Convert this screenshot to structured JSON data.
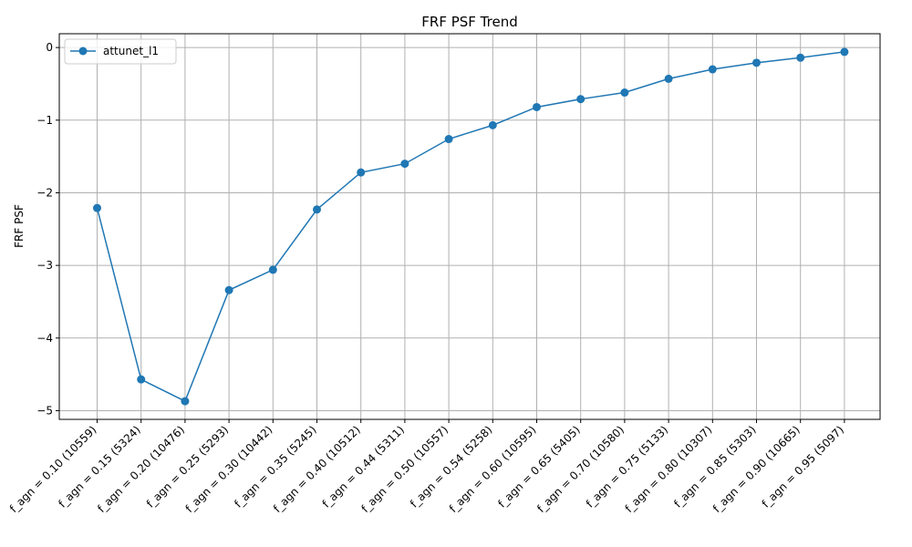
{
  "chart_data": {
    "type": "line",
    "title": "FRF PSF Trend",
    "xlabel": "",
    "ylabel": "FRF PSF",
    "categories": [
      "f_agn = 0.10 (10559)",
      "f_agn = 0.15 (5324)",
      "f_agn = 0.20 (10476)",
      "f_agn = 0.25 (5293)",
      "f_agn = 0.30 (10442)",
      "f_agn = 0.35 (5245)",
      "f_agn = 0.40 (10512)",
      "f_agn = 0.44 (5311)",
      "f_agn = 0.50 (10557)",
      "f_agn = 0.54 (5258)",
      "f_agn = 0.60 (10595)",
      "f_agn = 0.65 (5405)",
      "f_agn = 0.70 (10580)",
      "f_agn = 0.75 (5133)",
      "f_agn = 0.80 (10307)",
      "f_agn = 0.85 (5303)",
      "f_agn = 0.90 (10665)",
      "f_agn = 0.95 (5097)"
    ],
    "series": [
      {
        "name": "attunet_l1",
        "color": "#1f77b4",
        "marker": "circle",
        "values": [
          -2.21,
          -4.57,
          -4.87,
          -3.34,
          -3.06,
          -2.23,
          -1.72,
          -1.6,
          -1.26,
          -1.07,
          -0.82,
          -0.71,
          -0.62,
          -0.43,
          -0.3,
          -0.21,
          -0.14,
          -0.06
        ]
      }
    ],
    "ylim": [
      -5.12,
      0.19
    ],
    "yticks": [
      0,
      -1,
      -2,
      -3,
      -4,
      -5
    ],
    "ytick_labels": [
      "0",
      "−1",
      "−2",
      "−3",
      "−4",
      "−5"
    ],
    "grid": true,
    "legend_position": "upper-left"
  }
}
